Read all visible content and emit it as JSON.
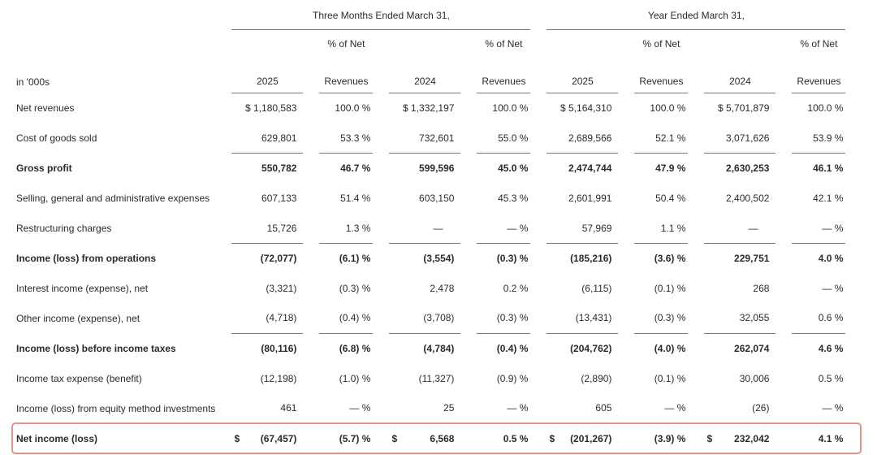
{
  "colors": {
    "text": "#2b2b2b",
    "rule": "#767676",
    "highlight_border": "#df948a"
  },
  "table": {
    "unit_label": "in '000s",
    "group_headers": [
      "Three Months Ended March 31,",
      "Year Ended March 31,"
    ],
    "pct_header_line1": "% of Net",
    "pct_header_line2": "Revenues",
    "year_headers": [
      "2025",
      "2024",
      "2025",
      "2024"
    ],
    "rows": [
      {
        "label": "Net revenues",
        "cells": [
          "$ 1,180,583",
          "100.0 %",
          "$ 1,332,197",
          "100.0 %",
          "$ 5,164,310",
          "100.0 %",
          "$ 5,701,879",
          "100.0 %"
        ],
        "bold": false,
        "underline": false,
        "boxed": false
      },
      {
        "label": "Cost of goods sold",
        "cells": [
          "629,801",
          "53.3 %",
          "732,601",
          "55.0 %",
          "2,689,566",
          "52.1 %",
          "3,071,626",
          "53.9 %"
        ],
        "bold": false,
        "underline": true,
        "boxed": false
      },
      {
        "label": "Gross profit",
        "cells": [
          "550,782",
          "46.7 %",
          "599,596",
          "45.0 %",
          "2,474,744",
          "47.9 %",
          "2,630,253",
          "46.1 %"
        ],
        "bold": true,
        "underline": false,
        "boxed": false
      },
      {
        "label": "Selling, general and administrative expenses",
        "cells": [
          "607,133",
          "51.4 %",
          "603,150",
          "45.3 %",
          "2,601,991",
          "50.4 %",
          "2,400,502",
          "42.1 %"
        ],
        "bold": false,
        "underline": false,
        "boxed": false
      },
      {
        "label": "Restructuring charges",
        "cells": [
          "15,726",
          "1.3 %",
          "—",
          "— %",
          "57,969",
          "1.1 %",
          "—",
          "— %"
        ],
        "bold": false,
        "underline": true,
        "boxed": false
      },
      {
        "label": "Income (loss) from operations",
        "cells": [
          "(72,077)",
          "(6.1) %",
          "(3,554)",
          "(0.3) %",
          "(185,216)",
          "(3.6) %",
          "229,751",
          "4.0 %"
        ],
        "bold": true,
        "underline": false,
        "boxed": false
      },
      {
        "label": "Interest income (expense), net",
        "cells": [
          "(3,321)",
          "(0.3) %",
          "2,478",
          "0.2 %",
          "(6,115)",
          "(0.1) %",
          "268",
          "— %"
        ],
        "bold": false,
        "underline": false,
        "boxed": false
      },
      {
        "label": "Other income (expense), net",
        "cells": [
          "(4,718)",
          "(0.4) %",
          "(3,708)",
          "(0.3) %",
          "(13,431)",
          "(0.3) %",
          "32,055",
          "0.6 %"
        ],
        "bold": false,
        "underline": true,
        "boxed": false
      },
      {
        "label": "Income (loss) before income taxes",
        "cells": [
          "(80,116)",
          "(6.8) %",
          "(4,784)",
          "(0.4) %",
          "(204,762)",
          "(4.0) %",
          "262,074",
          "4.6 %"
        ],
        "bold": true,
        "underline": false,
        "boxed": false
      },
      {
        "label": "Income tax expense (benefit)",
        "cells": [
          "(12,198)",
          "(1.0) %",
          "(11,327)",
          "(0.9) %",
          "(2,890)",
          "(0.1) %",
          "30,006",
          "0.5 %"
        ],
        "bold": false,
        "underline": false,
        "boxed": false
      },
      {
        "label": "Income (loss) from equity method investments",
        "cells": [
          "461",
          "— %",
          "25",
          "— %",
          "605",
          "— %",
          "(26)",
          "— %"
        ],
        "bold": false,
        "underline": true,
        "boxed": false
      },
      {
        "label": "Net income (loss)",
        "cells": [
          {
            "cur": "$",
            "val": "(67,457)"
          },
          "(5.7) %",
          {
            "cur": "$",
            "val": "6,568"
          },
          "0.5 %",
          {
            "cur": "$",
            "val": "(201,267)"
          },
          "(3.9) %",
          {
            "cur": "$",
            "val": "232,042"
          },
          "4.1 %"
        ],
        "bold": true,
        "underline": false,
        "boxed": true
      }
    ]
  }
}
